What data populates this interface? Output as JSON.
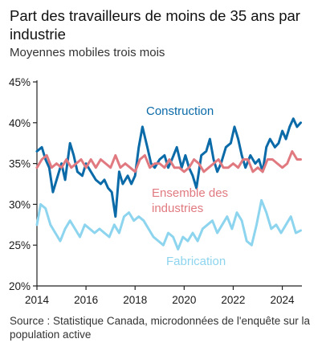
{
  "title": "Part des travailleurs de  moins de 35 ans par industrie",
  "subtitle": "Moyennes mobiles trois mois",
  "source": "Source : Statistique Canada, microdonnées de l'enquête sur la population active",
  "chart_data": {
    "type": "line",
    "title": "Part des travailleurs de  moins de 35 ans par industrie",
    "subtitle": "Moyennes mobiles trois mois",
    "xlim": [
      2014,
      2024.8
    ],
    "ylim": [
      20,
      45
    ],
    "yticks": [
      "20%",
      "25%",
      "30%",
      "35%",
      "40%",
      "45%"
    ],
    "ytick_values": [
      20,
      25,
      30,
      35,
      40,
      45
    ],
    "xticks": [
      "2014",
      "2016",
      "2018",
      "2020",
      "2022",
      "2024"
    ],
    "xtick_values": [
      2014,
      2016,
      2018,
      2020,
      2022,
      2024
    ],
    "grid": false,
    "series": [
      {
        "name": "Construction",
        "color": "#0b6aa8",
        "label_lines": [
          "Construction"
        ],
        "x": [
          2014.0,
          2014.2,
          2014.35,
          2014.5,
          2014.65,
          2014.85,
          2015.0,
          2015.15,
          2015.35,
          2015.5,
          2015.65,
          2015.85,
          2016.0,
          2016.2,
          2016.4,
          2016.6,
          2016.75,
          2016.9,
          2017.05,
          2017.2,
          2017.35,
          2017.5,
          2017.7,
          2017.85,
          2018.0,
          2018.15,
          2018.3,
          2018.5,
          2018.65,
          2018.8,
          2019.0,
          2019.2,
          2019.35,
          2019.5,
          2019.7,
          2019.9,
          2020.05,
          2020.2,
          2020.35,
          2020.5,
          2020.7,
          2020.9,
          2021.05,
          2021.2,
          2021.35,
          2021.5,
          2021.7,
          2021.9,
          2022.05,
          2022.2,
          2022.35,
          2022.5,
          2022.7,
          2022.9,
          2023.05,
          2023.2,
          2023.35,
          2023.5,
          2023.7,
          2023.85,
          2024.0,
          2024.15,
          2024.3,
          2024.45,
          2024.6,
          2024.75
        ],
        "values": [
          36.5,
          37.0,
          35.5,
          34.5,
          31.5,
          33.5,
          35.0,
          33.0,
          37.5,
          36.0,
          34.0,
          33.5,
          35.0,
          34.0,
          33.0,
          32.5,
          33.0,
          32.0,
          31.5,
          28.5,
          34.0,
          32.5,
          33.5,
          32.5,
          33.5,
          37.0,
          39.5,
          37.0,
          35.0,
          34.5,
          35.5,
          36.0,
          34.5,
          35.5,
          37.0,
          34.5,
          36.0,
          34.5,
          33.5,
          32.0,
          36.0,
          36.5,
          38.0,
          35.5,
          34.0,
          35.0,
          37.0,
          37.5,
          39.5,
          38.0,
          36.0,
          34.5,
          36.0,
          35.0,
          35.5,
          34.0,
          37.0,
          38.0,
          37.0,
          37.5,
          39.0,
          38.0,
          39.5,
          40.5,
          39.5,
          40.0
        ]
      },
      {
        "name": "Ensemble des industries",
        "color": "#e07a80",
        "label_lines": [
          "Ensemble des",
          "industries"
        ],
        "x": [
          2014.0,
          2014.2,
          2014.4,
          2014.6,
          2014.8,
          2015.0,
          2015.2,
          2015.4,
          2015.6,
          2015.8,
          2016.0,
          2016.2,
          2016.4,
          2016.6,
          2016.8,
          2017.0,
          2017.2,
          2017.4,
          2017.6,
          2017.8,
          2018.0,
          2018.2,
          2018.4,
          2018.6,
          2018.8,
          2019.0,
          2019.2,
          2019.4,
          2019.6,
          2019.8,
          2020.0,
          2020.2,
          2020.4,
          2020.6,
          2020.8,
          2021.0,
          2021.2,
          2021.4,
          2021.6,
          2021.8,
          2022.0,
          2022.2,
          2022.4,
          2022.6,
          2022.8,
          2023.0,
          2023.2,
          2023.4,
          2023.6,
          2023.8,
          2024.0,
          2024.2,
          2024.4,
          2024.6,
          2024.75
        ],
        "values": [
          34.5,
          35.5,
          36.0,
          34.5,
          35.0,
          34.5,
          35.5,
          34.5,
          35.0,
          35.5,
          34.5,
          35.5,
          34.5,
          35.5,
          35.0,
          34.5,
          36.0,
          34.5,
          35.0,
          34.5,
          34.0,
          35.5,
          36.0,
          34.5,
          35.0,
          35.0,
          34.5,
          35.5,
          34.5,
          34.5,
          34.0,
          34.5,
          35.5,
          35.0,
          34.0,
          34.5,
          35.0,
          35.5,
          34.5,
          34.5,
          35.0,
          34.5,
          35.5,
          35.5,
          34.0,
          34.5,
          34.0,
          35.5,
          35.5,
          35.0,
          34.5,
          35.0,
          36.5,
          35.5,
          35.5
        ]
      },
      {
        "name": "Fabrication",
        "color": "#8dd4ee",
        "label_lines": [
          "Fabrication"
        ],
        "x": [
          2014.0,
          2014.15,
          2014.35,
          2014.55,
          2014.75,
          2014.95,
          2015.15,
          2015.35,
          2015.55,
          2015.75,
          2015.95,
          2016.15,
          2016.35,
          2016.55,
          2016.75,
          2016.95,
          2017.15,
          2017.35,
          2017.55,
          2017.75,
          2017.95,
          2018.15,
          2018.35,
          2018.55,
          2018.75,
          2018.95,
          2019.15,
          2019.35,
          2019.55,
          2019.75,
          2019.95,
          2020.15,
          2020.35,
          2020.55,
          2020.75,
          2020.95,
          2021.15,
          2021.35,
          2021.55,
          2021.75,
          2021.95,
          2022.15,
          2022.35,
          2022.55,
          2022.75,
          2022.95,
          2023.15,
          2023.35,
          2023.55,
          2023.75,
          2023.95,
          2024.15,
          2024.35,
          2024.55,
          2024.75
        ],
        "values": [
          27.5,
          30.0,
          29.5,
          27.5,
          26.5,
          25.5,
          27.0,
          28.0,
          27.0,
          26.0,
          27.5,
          27.0,
          26.5,
          27.0,
          26.5,
          26.0,
          27.5,
          26.5,
          28.5,
          29.0,
          28.0,
          28.5,
          28.0,
          27.0,
          26.0,
          25.5,
          25.0,
          26.5,
          26.0,
          24.5,
          26.0,
          25.5,
          26.5,
          25.5,
          27.0,
          27.5,
          28.0,
          26.5,
          27.5,
          28.5,
          27.0,
          29.0,
          28.0,
          25.5,
          25.0,
          27.5,
          30.5,
          29.0,
          27.0,
          27.5,
          26.5,
          27.5,
          28.5,
          26.5,
          26.8
        ]
      }
    ]
  }
}
